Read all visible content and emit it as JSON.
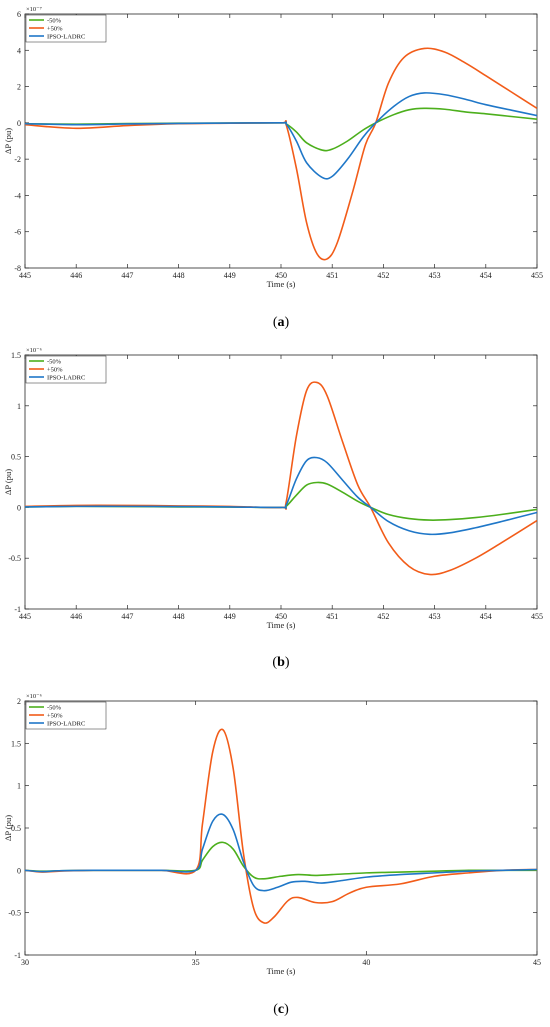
{
  "series_colors": {
    "-50%": "#4caf1c",
    "+50%": "#f25c19",
    "IPSO-LADRC": "#1f77c8"
  },
  "chart_data": [
    {
      "type": "line",
      "caption_letter": "a",
      "xlabel": "Time (s)",
      "ylabel": "ΔP (pu)",
      "exponent_label": "×10⁻⁷",
      "xlim": [
        445,
        455
      ],
      "ylim": [
        -8,
        6
      ],
      "xticks": [
        445,
        446,
        447,
        448,
        449,
        450,
        451,
        452,
        453,
        454,
        455
      ],
      "yticks": [
        -8,
        -6,
        -4,
        -2,
        0,
        2,
        4,
        6
      ],
      "legend_position": "top-left",
      "series": [
        {
          "name": "-50%",
          "x": [
            445,
            446,
            447,
            448,
            449,
            450,
            450.1,
            450.3,
            450.5,
            450.8,
            451.0,
            451.3,
            451.6,
            451.85,
            452.2,
            452.5,
            452.8,
            453.2,
            453.6,
            454.0,
            454.5,
            455
          ],
          "y": [
            -0.05,
            -0.07,
            -0.04,
            -0.02,
            -0.01,
            0,
            -0.05,
            -0.5,
            -1.1,
            -1.5,
            -1.45,
            -1.0,
            -0.4,
            0,
            0.45,
            0.72,
            0.8,
            0.75,
            0.6,
            0.5,
            0.35,
            0.2
          ]
        },
        {
          "name": "+50%",
          "x": [
            445,
            446,
            447,
            448,
            449,
            450,
            450.1,
            450.3,
            450.5,
            450.7,
            450.9,
            451.1,
            451.4,
            451.65,
            451.85,
            452.1,
            452.4,
            452.8,
            453.2,
            453.6,
            454.0,
            454.5,
            455
          ],
          "y": [
            -0.1,
            -0.3,
            -0.15,
            -0.05,
            -0.02,
            0,
            -0.1,
            -2.5,
            -5.5,
            -7.2,
            -7.5,
            -6.6,
            -3.8,
            -1.2,
            0,
            2.2,
            3.6,
            4.1,
            3.9,
            3.3,
            2.6,
            1.7,
            0.8
          ]
        },
        {
          "name": "IPSO-LADRC",
          "x": [
            445,
            446,
            447,
            448,
            449,
            450,
            450.1,
            450.3,
            450.5,
            450.8,
            451.0,
            451.3,
            451.6,
            451.85,
            452.2,
            452.5,
            452.8,
            453.2,
            453.6,
            454.0,
            454.5,
            455
          ],
          "y": [
            -0.05,
            -0.1,
            -0.06,
            -0.03,
            -0.01,
            0,
            -0.05,
            -1.0,
            -2.2,
            -3.0,
            -2.95,
            -2.0,
            -0.8,
            0,
            0.9,
            1.45,
            1.65,
            1.55,
            1.3,
            1.0,
            0.7,
            0.4
          ]
        }
      ]
    },
    {
      "type": "line",
      "caption_letter": "b",
      "xlabel": "Time (s)",
      "ylabel": "ΔP (pu)",
      "exponent_label": "×10⁻⁶",
      "xlim": [
        445,
        455
      ],
      "ylim": [
        -1,
        1.5
      ],
      "xticks": [
        445,
        446,
        447,
        448,
        449,
        450,
        451,
        452,
        453,
        454,
        455
      ],
      "yticks": [
        -1,
        -0.5,
        0,
        0.5,
        1,
        1.5
      ],
      "legend_position": "top-left",
      "series": [
        {
          "name": "-50%",
          "x": [
            445,
            446,
            447,
            448,
            449,
            450,
            450.1,
            450.3,
            450.5,
            450.7,
            450.9,
            451.2,
            451.5,
            451.75,
            452.1,
            452.5,
            452.9,
            453.3,
            453.8,
            454.3,
            455
          ],
          "y": [
            0.005,
            0.01,
            0.008,
            0.005,
            0.003,
            0,
            0.01,
            0.12,
            0.22,
            0.245,
            0.23,
            0.15,
            0.06,
            0,
            -0.07,
            -0.11,
            -0.125,
            -0.12,
            -0.1,
            -0.07,
            -0.02
          ]
        },
        {
          "name": "+50%",
          "x": [
            445,
            446,
            447,
            448,
            449,
            450,
            450.1,
            450.3,
            450.5,
            450.7,
            450.9,
            451.2,
            451.5,
            451.75,
            452.1,
            452.5,
            452.9,
            453.3,
            453.8,
            454.3,
            455
          ],
          "y": [
            0.01,
            0.02,
            0.02,
            0.015,
            0.01,
            0,
            0.05,
            0.7,
            1.15,
            1.23,
            1.1,
            0.65,
            0.22,
            0,
            -0.35,
            -0.58,
            -0.66,
            -0.62,
            -0.5,
            -0.35,
            -0.13
          ]
        },
        {
          "name": "IPSO-LADRC",
          "x": [
            445,
            446,
            447,
            448,
            449,
            450,
            450.1,
            450.3,
            450.5,
            450.7,
            450.9,
            451.2,
            451.5,
            451.75,
            452.1,
            452.5,
            452.9,
            453.3,
            453.8,
            454.3,
            455
          ],
          "y": [
            0.005,
            0.01,
            0.01,
            0.008,
            0.005,
            0,
            0.02,
            0.28,
            0.46,
            0.49,
            0.44,
            0.27,
            0.1,
            0,
            -0.14,
            -0.23,
            -0.265,
            -0.25,
            -0.2,
            -0.14,
            -0.05
          ]
        }
      ]
    },
    {
      "type": "line",
      "caption_letter": "c",
      "xlabel": "Time (s)",
      "ylabel": "ΔP (pu)",
      "exponent_label": "×10⁻⁶",
      "xlim": [
        30,
        45
      ],
      "ylim": [
        -1,
        2
      ],
      "xticks": [
        30,
        35,
        40,
        45
      ],
      "yticks": [
        -1,
        -0.5,
        0,
        0.5,
        1,
        1.5,
        2
      ],
      "legend_position": "top-left",
      "series": [
        {
          "name": "-50%",
          "x": [
            30,
            30.5,
            31,
            32,
            33,
            34,
            35,
            35.2,
            35.5,
            35.8,
            36.1,
            36.4,
            36.7,
            37.0,
            37.5,
            38.0,
            38.5,
            39.0,
            40.0,
            41.0,
            42.0,
            43.0,
            44.0,
            45.0
          ],
          "y": [
            0,
            -0.01,
            -0.005,
            0,
            0,
            0,
            0,
            0.12,
            0.28,
            0.33,
            0.25,
            0.05,
            -0.08,
            -0.1,
            -0.07,
            -0.05,
            -0.06,
            -0.05,
            -0.03,
            -0.02,
            -0.01,
            0,
            0,
            0
          ]
        },
        {
          "name": "+50%",
          "x": [
            30,
            30.5,
            31,
            32,
            33,
            34,
            35,
            35.2,
            35.5,
            35.8,
            36.1,
            36.4,
            36.7,
            37.0,
            37.3,
            37.7,
            38.0,
            38.5,
            39.0,
            39.5,
            40.0,
            41.0,
            42.0,
            43.0,
            44.0,
            45.0
          ],
          "y": [
            0,
            -0.02,
            -0.01,
            0,
            0,
            0,
            0,
            0.55,
            1.4,
            1.66,
            1.2,
            0.2,
            -0.45,
            -0.62,
            -0.55,
            -0.36,
            -0.32,
            -0.38,
            -0.37,
            -0.27,
            -0.2,
            -0.16,
            -0.07,
            -0.03,
            0,
            0.01
          ]
        },
        {
          "name": "IPSO-LADRC",
          "x": [
            30,
            30.5,
            31,
            32,
            33,
            34,
            35,
            35.2,
            35.5,
            35.8,
            36.1,
            36.4,
            36.7,
            37.0,
            37.4,
            37.8,
            38.2,
            38.7,
            39.3,
            40.0,
            41.0,
            42.0,
            43.0,
            44.0,
            45.0
          ],
          "y": [
            0,
            -0.015,
            -0.005,
            0,
            0,
            0,
            0,
            0.25,
            0.58,
            0.66,
            0.48,
            0.1,
            -0.18,
            -0.24,
            -0.2,
            -0.14,
            -0.13,
            -0.15,
            -0.12,
            -0.08,
            -0.05,
            -0.03,
            -0.01,
            0,
            0.01
          ]
        }
      ]
    }
  ]
}
